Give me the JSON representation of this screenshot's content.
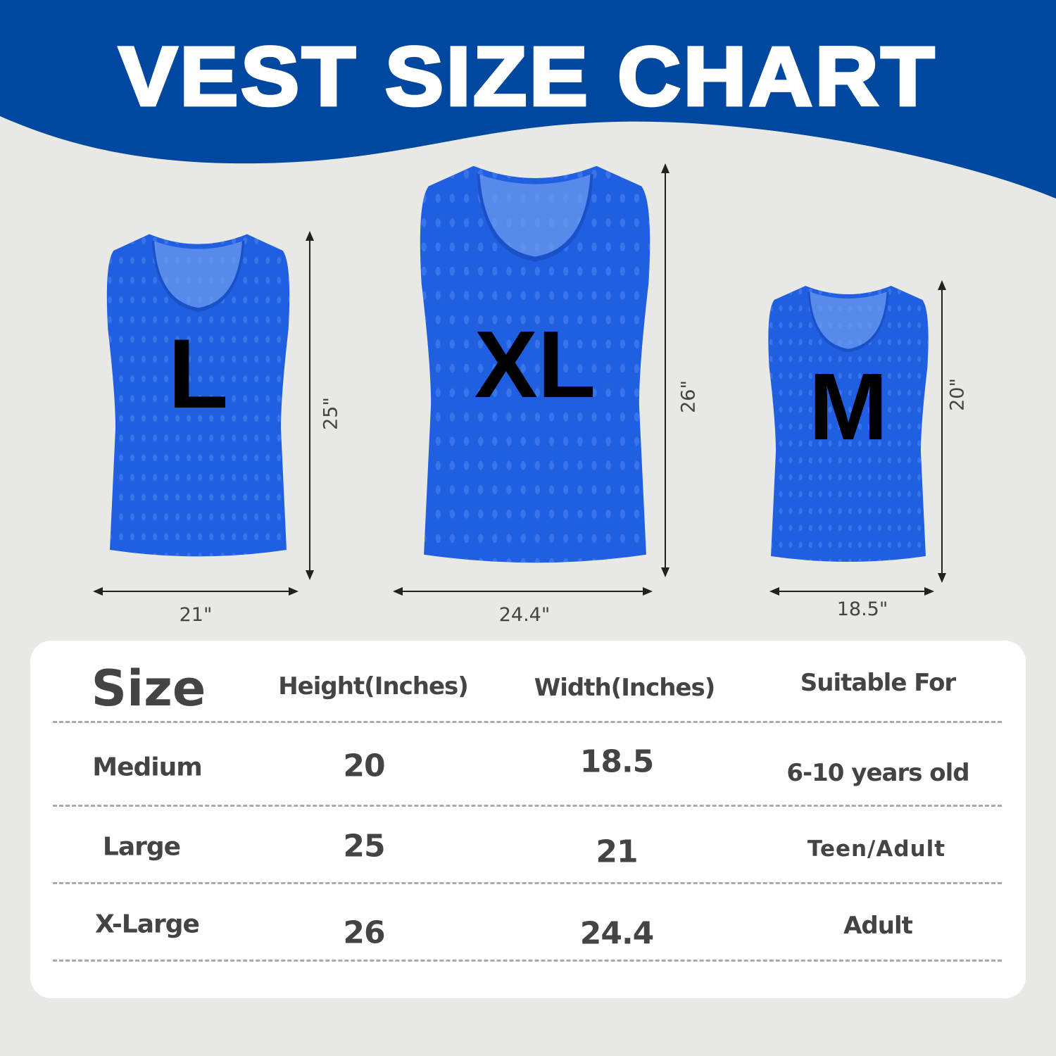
{
  "title": "VEST SIZE CHART",
  "colors": {
    "header_blue": "#0047a0",
    "vest_blue": "#1f5fe0",
    "background": "#e8e8e5"
  },
  "vests": [
    {
      "label": "L",
      "height": "25\"",
      "width": "21\""
    },
    {
      "label": "XL",
      "height": "26\"",
      "width": "24.4\""
    },
    {
      "label": "M",
      "height": "20\"",
      "width": "18.5\""
    }
  ],
  "table": {
    "headers": [
      "Size",
      "Height(Inches)",
      "Width(Inches)",
      "Suitable For"
    ],
    "rows": [
      [
        "Medium",
        "20",
        "18.5",
        "6-10 years old"
      ],
      [
        "Large",
        "25",
        "21",
        "Teen/Adult"
      ],
      [
        "X-Large",
        "26",
        "24.4",
        "Adult"
      ]
    ]
  }
}
